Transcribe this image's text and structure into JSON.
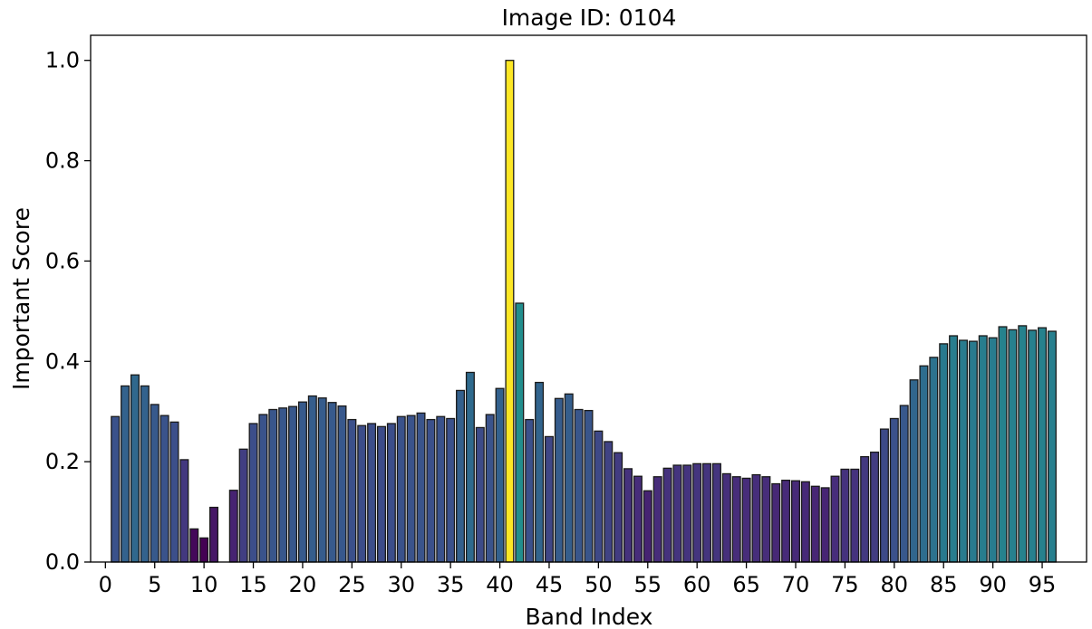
{
  "chart_data": {
    "type": "bar",
    "title": "Image ID: 0104",
    "xlabel": "Band Index",
    "ylabel": "Important Score",
    "xlim": [
      -1.5,
      99.5
    ],
    "ylim": [
      0,
      1.05
    ],
    "x_ticks": [
      0,
      5,
      10,
      15,
      20,
      25,
      30,
      35,
      40,
      45,
      50,
      55,
      60,
      65,
      70,
      75,
      80,
      85,
      90,
      95
    ],
    "y_ticks": [
      0.0,
      0.2,
      0.4,
      0.6,
      0.8,
      1.0
    ],
    "y_tick_labels": [
      "0.0",
      "0.2",
      "0.4",
      "0.6",
      "0.8",
      "1.0"
    ],
    "grid": false,
    "legend": "none",
    "colormap": "viridis",
    "x": [
      1,
      2,
      3,
      4,
      5,
      6,
      7,
      8,
      9,
      10,
      11,
      12,
      13,
      14,
      15,
      16,
      17,
      18,
      19,
      20,
      21,
      22,
      23,
      24,
      25,
      26,
      27,
      28,
      29,
      30,
      31,
      32,
      33,
      34,
      35,
      36,
      37,
      38,
      39,
      40,
      41,
      42,
      43,
      44,
      45,
      46,
      47,
      48,
      49,
      50,
      51,
      52,
      53,
      54,
      55,
      56,
      57,
      58,
      59,
      60,
      61,
      62,
      63,
      64,
      65,
      66,
      67,
      68,
      69,
      70,
      71,
      72,
      73,
      74,
      75,
      76,
      77,
      78,
      79,
      80,
      81,
      82,
      83,
      84,
      85,
      86,
      87,
      88,
      89,
      90,
      91,
      92,
      93,
      94,
      95,
      96
    ],
    "values": [
      0.29,
      0.351,
      0.373,
      0.351,
      0.314,
      0.292,
      0.279,
      0.204,
      0.066,
      0.048,
      0.109,
      0.0,
      0.143,
      0.225,
      0.276,
      0.294,
      0.304,
      0.307,
      0.31,
      0.319,
      0.331,
      0.327,
      0.318,
      0.311,
      0.284,
      0.272,
      0.276,
      0.27,
      0.276,
      0.29,
      0.292,
      0.297,
      0.284,
      0.29,
      0.286,
      0.342,
      0.378,
      0.268,
      0.294,
      0.346,
      1.0,
      0.516,
      0.284,
      0.358,
      0.25,
      0.326,
      0.335,
      0.304,
      0.302,
      0.261,
      0.24,
      0.218,
      0.186,
      0.171,
      0.142,
      0.17,
      0.187,
      0.193,
      0.193,
      0.196,
      0.196,
      0.196,
      0.176,
      0.17,
      0.167,
      0.174,
      0.17,
      0.156,
      0.163,
      0.162,
      0.16,
      0.151,
      0.148,
      0.171,
      0.185,
      0.185,
      0.21,
      0.219,
      0.265,
      0.286,
      0.312,
      0.363,
      0.391,
      0.408,
      0.435,
      0.451,
      0.442,
      0.44,
      0.451,
      0.447,
      0.469,
      0.463,
      0.471,
      0.462,
      0.467,
      0.46
    ]
  }
}
